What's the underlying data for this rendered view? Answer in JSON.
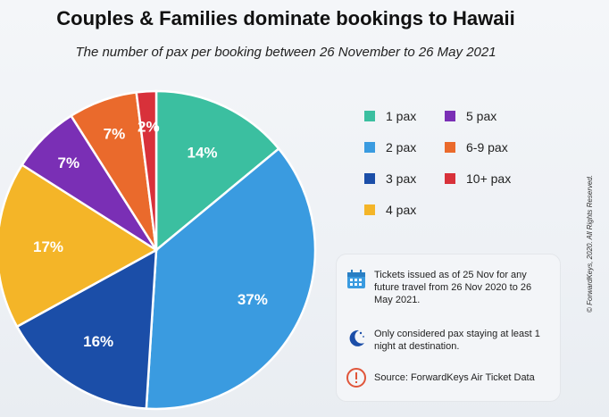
{
  "title": "Couples & Families dominate bookings to Hawaii",
  "subtitle": "The number of pax per booking between 26 November to 26 May 2021",
  "chart_data": {
    "type": "pie",
    "title": "Couples & Families dominate bookings to Hawaii",
    "subtitle": "The number of pax per booking between 26 November to 26 May 2021",
    "categories": [
      "1 pax",
      "2 pax",
      "3 pax",
      "4 pax",
      "5 pax",
      "6-9 pax",
      "10+ pax"
    ],
    "values": [
      14,
      37,
      16,
      17,
      7,
      7,
      2
    ],
    "labels": [
      "14%",
      "37%",
      "16%",
      "17%",
      "7%",
      "7%",
      "2%"
    ],
    "colors": [
      "#3bbfa0",
      "#3a9be0",
      "#1b4ea8",
      "#f4b528",
      "#7a2fb5",
      "#ea6a2c",
      "#d8313a"
    ],
    "legend_position": "right"
  },
  "notes": [
    {
      "icon": "calendar-icon",
      "text": "Tickets issued as of 25 Nov for any future travel from 26 Nov 2020 to 26 May 2021."
    },
    {
      "icon": "moon-icon",
      "text": "Only considered pax staying at least 1 night at destination."
    },
    {
      "icon": "alert-icon",
      "text": "Source: ForwardKeys Air Ticket Data"
    }
  ],
  "copyright": "© ForwardKeys, 2020. All Rights Reserved."
}
